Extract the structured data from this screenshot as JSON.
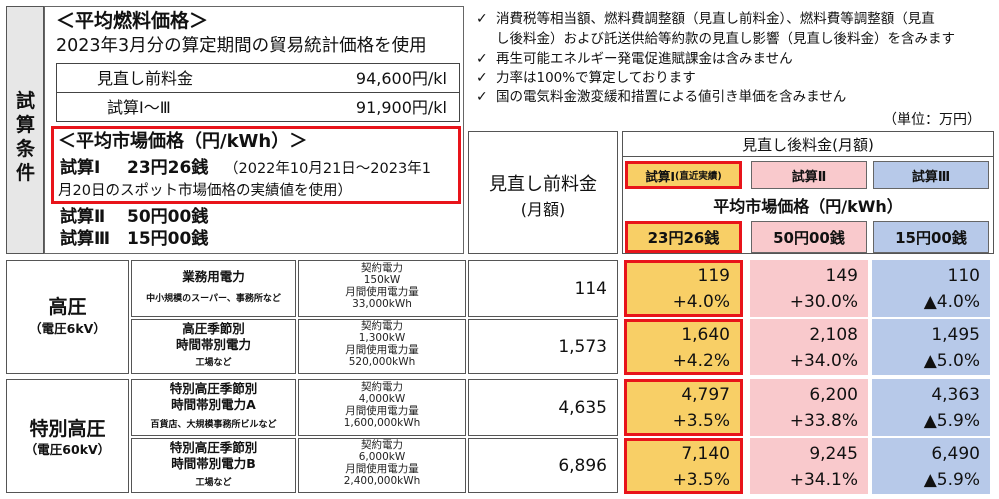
{
  "conditions": {
    "side_label": [
      "試",
      "算",
      "条",
      "件"
    ],
    "fuel": {
      "title": "＜平均燃料価格＞",
      "subtitle": "2023年3月分の算定期間の貿易統計価格を使用",
      "rows": [
        {
          "label": "見直し前料金",
          "value": "94,600円/kl"
        },
        {
          "label": "試算Ⅰ～Ⅲ",
          "value": "91,900円/kl"
        }
      ]
    },
    "market": {
      "title": "＜平均市場価格（円/kWh）＞",
      "case1_name": "試算Ⅰ",
      "case1_price": "23円26銭",
      "case1_note_a": "（2022年10月21日～2023年1",
      "case1_note_b": "月20日のスポット市場価格の実績値を使用）",
      "case2_name": "試算Ⅱ",
      "case2_price": "50円00銭",
      "case3_name": "試算Ⅲ",
      "case3_price": "15円00銭"
    },
    "notes": [
      {
        "line1": "消費税等相当額、燃料費調整額（見直し前料金）、燃料費等調整額（見直",
        "line2": "し後料金）および託送供給等約款の見直し影響（見直し後料金）を含みます"
      },
      {
        "line1": "再生可能エネルギー発電促進賦課金は含みません"
      },
      {
        "line1": "力率は100%で算定しております"
      },
      {
        "line1": "国の電気料金激変緩和措置による値引き単価を含みません"
      }
    ],
    "check_mark": "✓"
  },
  "table": {
    "unit": "（単位：万円）",
    "before_header_1": "見直し前料金",
    "before_header_2": "(月額)",
    "after_header": "見直し後料金(月額)",
    "cases": [
      {
        "name": "試算Ⅰ",
        "sub": "(直近実績)",
        "price": "23円26銭"
      },
      {
        "name": "試算Ⅱ",
        "sub": "",
        "price": "50円00銭"
      },
      {
        "name": "試算Ⅲ",
        "sub": "",
        "price": "15円00銭"
      }
    ],
    "market_header": "平均市場価格（円/kWh）",
    "groups": [
      {
        "name": "高圧",
        "sub": "（電圧6kV）"
      },
      {
        "name": "特別高圧",
        "sub": "（電圧60kV）"
      }
    ],
    "rows": [
      {
        "plan1": "業務用電力",
        "plan2": "",
        "usage": "中小規模のスーパー、事務所など",
        "spec": [
          "契約電力",
          "150kW",
          "月間使用電力量",
          "33,000kWh"
        ],
        "before": "114",
        "after": [
          {
            "v": "119",
            "d": "+4.0%"
          },
          {
            "v": "149",
            "d": "+30.0%"
          },
          {
            "v": "110",
            "d": "▲4.0%"
          }
        ]
      },
      {
        "plan1": "高圧季節別",
        "plan2": "時間帯別電力",
        "usage": "工場など",
        "spec": [
          "契約電力",
          "1,300kW",
          "月間使用電力量",
          "520,000kWh"
        ],
        "before": "1,573",
        "after": [
          {
            "v": "1,640",
            "d": "+4.2%"
          },
          {
            "v": "2,108",
            "d": "+34.0%"
          },
          {
            "v": "1,495",
            "d": "▲5.0%"
          }
        ]
      },
      {
        "plan1": "特別高圧季節別",
        "plan2": "時間帯別電力A",
        "usage": "百貨店、大規模事務所ビルなど",
        "spec": [
          "契約電力",
          "4,000kW",
          "月間使用電力量",
          "1,600,000kWh"
        ],
        "before": "4,635",
        "after": [
          {
            "v": "4,797",
            "d": "+3.5%"
          },
          {
            "v": "6,200",
            "d": "+33.8%"
          },
          {
            "v": "4,363",
            "d": "▲5.9%"
          }
        ]
      },
      {
        "plan1": "特別高圧季節別",
        "plan2": "時間帯別電力B",
        "usage": "工場など",
        "spec": [
          "契約電力",
          "6,000kW",
          "月間使用電力量",
          "2,400,000kWh"
        ],
        "before": "6,896",
        "after": [
          {
            "v": "7,140",
            "d": "+3.5%"
          },
          {
            "v": "9,245",
            "d": "+34.1%"
          },
          {
            "v": "6,490",
            "d": "▲5.9%"
          }
        ]
      }
    ]
  },
  "colors": {
    "highlight_red": "#e8141a",
    "case1_yellow": "#f8cf66",
    "case2_pink": "#f9c9cc",
    "case3_blue": "#b7c9e9",
    "side_gray": "#e7e7e7"
  }
}
